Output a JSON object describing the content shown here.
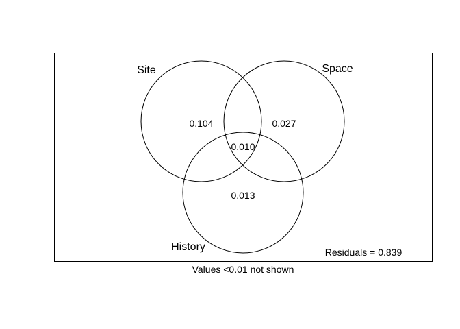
{
  "venn": {
    "sets": [
      {
        "key": "site",
        "name": "Site"
      },
      {
        "key": "space",
        "name": "Space"
      },
      {
        "key": "history",
        "name": "History"
      }
    ],
    "regions": [
      {
        "key": "site_only",
        "sets": [
          "Site"
        ],
        "label": "0.104"
      },
      {
        "key": "space_only",
        "sets": [
          "Space"
        ],
        "label": "0.027"
      },
      {
        "key": "all_three",
        "sets": [
          "Site",
          "Space",
          "History"
        ],
        "label": "0.010"
      },
      {
        "key": "history_only",
        "sets": [
          "History"
        ],
        "label": "0.013"
      }
    ],
    "residuals": "Residuals = 0.839",
    "footnote": "Values <0.01 not shown",
    "stroke_color": "#000000",
    "background": "#ffffff"
  }
}
